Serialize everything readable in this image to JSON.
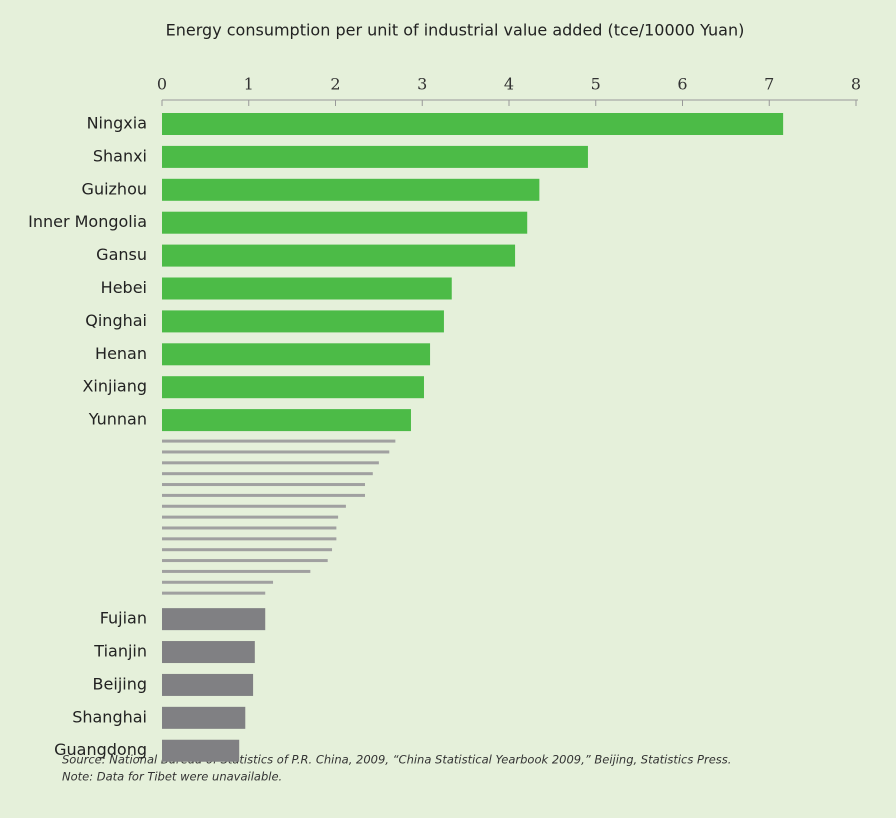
{
  "chart_data": {
    "type": "bar",
    "orientation": "horizontal",
    "title": "Energy consumption per unit of industrial value added (tce/10000 Yuan)",
    "categories": [
      "Ningxia",
      "Shanxi",
      "Guizhou",
      "Inner Mongolia",
      "Gansu",
      "Hebei",
      "Qinghai",
      "Henan",
      "Xinjiang",
      "Yunnan",
      null,
      null,
      null,
      null,
      null,
      null,
      null,
      null,
      null,
      null,
      null,
      null,
      null,
      null,
      null,
      "Fujian",
      "Tianjin",
      "Beijing",
      "Shanghai",
      "Guangdong"
    ],
    "values": [
      7.16,
      4.91,
      4.35,
      4.21,
      4.07,
      3.34,
      3.25,
      3.09,
      3.02,
      2.87,
      2.69,
      2.62,
      2.5,
      2.43,
      2.34,
      2.34,
      2.12,
      2.03,
      2.01,
      2.01,
      1.96,
      1.91,
      1.71,
      1.28,
      1.19,
      1.19,
      1.07,
      1.05,
      0.96,
      0.89
    ],
    "colors": [
      "#4cbb47",
      "#4cbb47",
      "#4cbb47",
      "#4cbb47",
      "#4cbb47",
      "#4cbb47",
      "#4cbb47",
      "#4cbb47",
      "#4cbb47",
      "#4cbb47",
      "#a0a0a0",
      "#a0a0a0",
      "#a0a0a0",
      "#a0a0a0",
      "#a0a0a0",
      "#a0a0a0",
      "#a0a0a0",
      "#a0a0a0",
      "#a0a0a0",
      "#a0a0a0",
      "#a0a0a0",
      "#a0a0a0",
      "#a0a0a0",
      "#a0a0a0",
      "#a0a0a0",
      "#808083",
      "#808083",
      "#808083",
      "#808083",
      "#808083"
    ],
    "xlim": [
      0,
      8
    ],
    "xticks": [
      0,
      1,
      2,
      3,
      4,
      5,
      6,
      7,
      8
    ],
    "grid": false,
    "notes": [
      "Source: National Bureau of Statistics of P.R. China, 2009, “China Statistical Yearbook 2009,” Beijing, Statistics Press.",
      "Note: Data for Tibet were unavailable."
    ]
  }
}
